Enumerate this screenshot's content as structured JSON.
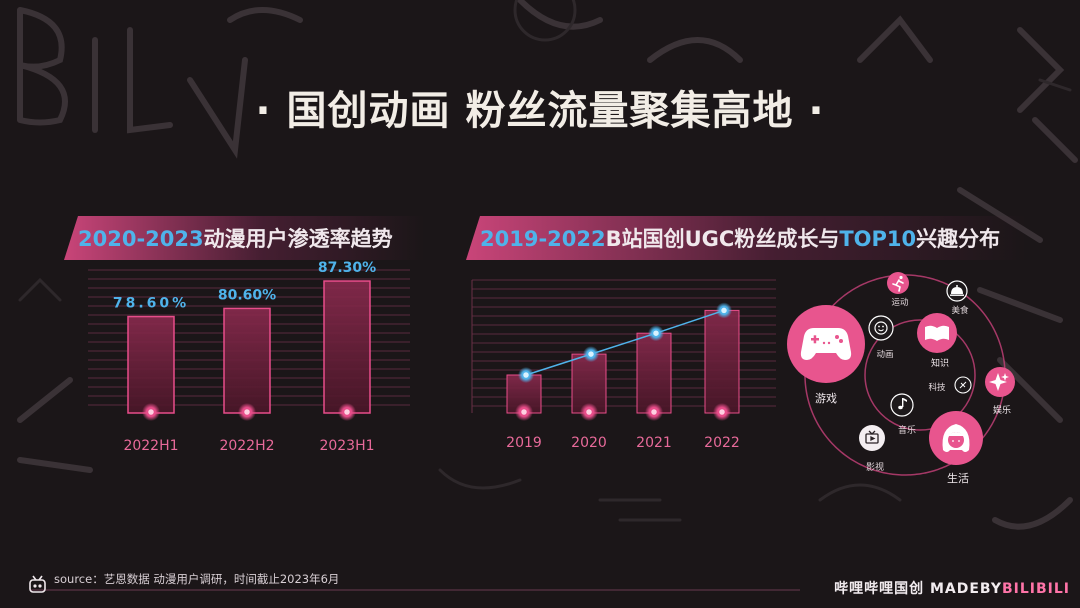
{
  "title": "· 国创动画 粉丝流量聚集高地 ·",
  "left_section": {
    "highlight": "2020-2023",
    "text": "动漫用户渗透率趋势"
  },
  "right_section": {
    "highlight1": "2019-2022",
    "text1": "B站国创UGC粉丝成长与",
    "highlight2": "TOP10",
    "text2": "兴趣分布"
  },
  "chart_data": [
    {
      "type": "bar",
      "categories": [
        "2022H1",
        "2022H2",
        "2023H1"
      ],
      "values": [
        78.6,
        80.6,
        87.3
      ],
      "value_labels": [
        "78.60%",
        "80.60%",
        "87.30%"
      ],
      "title": "2020-2023动漫用户渗透率趋势",
      "xlabel": "",
      "ylabel": "",
      "ylim": [
        55,
        90
      ],
      "grid": true
    },
    {
      "type": "bar",
      "categories": [
        "2019",
        "2020",
        "2021",
        "2022"
      ],
      "values": [
        1.0,
        1.55,
        2.1,
        2.7
      ],
      "series_overlay": "line",
      "title": "2019-2022B站国创UGC粉丝成长与TOP10兴趣分布",
      "xlabel": "",
      "ylabel": "",
      "ylim": [
        0,
        3.5
      ],
      "grid": true
    }
  ],
  "interests": {
    "youxi": "游戏",
    "yundong": "运动",
    "meishi": "美食",
    "donghua": "动画",
    "zhishi": "知识",
    "keji": "科技",
    "yule": "娱乐",
    "yinyue": "音乐",
    "yingshi": "影视",
    "shenghuo": "生活"
  },
  "footer": {
    "source": "source：艺恩数据 动漫用户调研，时间截止2023年6月",
    "brand_main": "哔哩哔哩国创",
    "brand_made": "MADEBY",
    "brand_bili": "BILIBILI"
  },
  "colors": {
    "accent_pink": "#e84d8a",
    "accent_blue": "#4fb3ea",
    "background": "#1b1618"
  }
}
